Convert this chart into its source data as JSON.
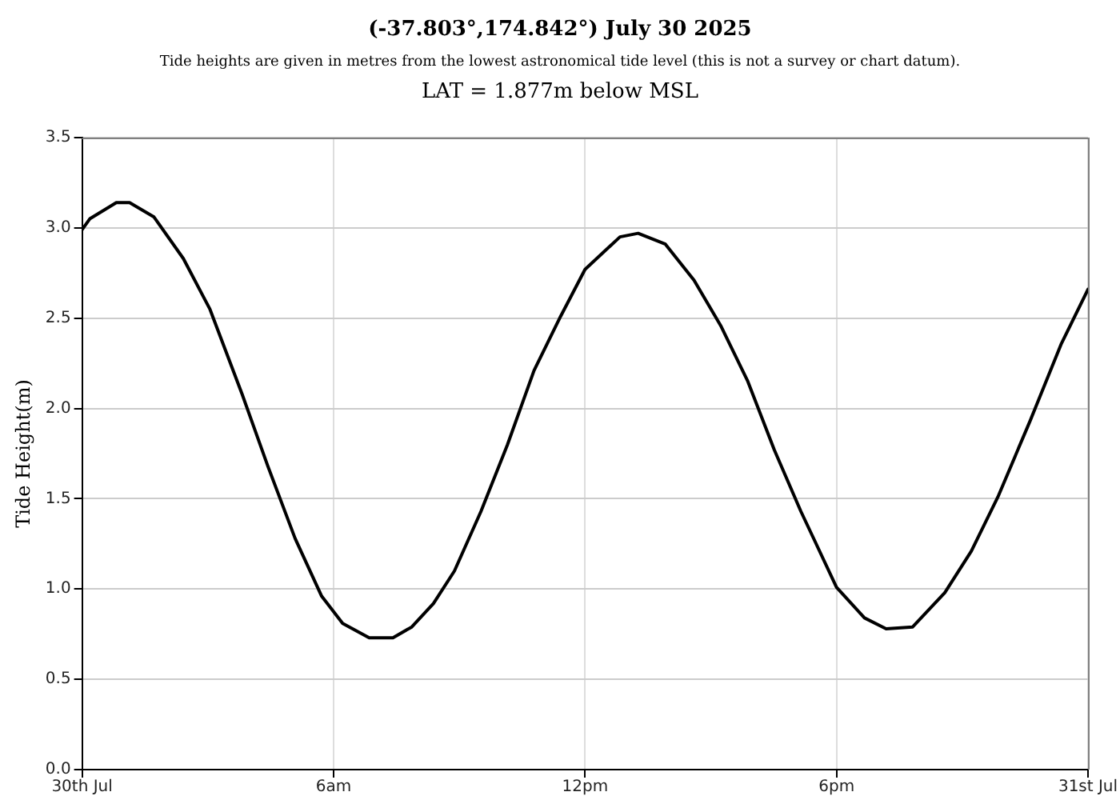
{
  "chart_data": {
    "type": "line",
    "title": "(-37.803°,174.842°) July 30 2025",
    "subtitle": "Tide heights are given in metres from the lowest astronomical tide level (this is not a survey or chart datum).",
    "annotations": [
      "LAT = 1.877m below MSL"
    ],
    "ylabel": "Tide Height(m)",
    "x": [
      "2025-07-30T00:00",
      "2025-07-30T00:11",
      "2025-07-30T00:49",
      "2025-07-30T01:08",
      "2025-07-30T01:43",
      "2025-07-30T02:25",
      "2025-07-30T03:03",
      "2025-07-30T03:49",
      "2025-07-30T04:26",
      "2025-07-30T05:05",
      "2025-07-30T05:43",
      "2025-07-30T06:13",
      "2025-07-30T06:51",
      "2025-07-30T07:25",
      "2025-07-30T07:52",
      "2025-07-30T08:23",
      "2025-07-30T08:53",
      "2025-07-30T09:31",
      "2025-07-30T10:09",
      "2025-07-30T10:47",
      "2025-07-30T11:25",
      "2025-07-30T12:00",
      "2025-07-30T12:50",
      "2025-07-30T13:16",
      "2025-07-30T13:55",
      "2025-07-30T14:36",
      "2025-07-30T15:14",
      "2025-07-30T15:53",
      "2025-07-30T16:31",
      "2025-07-30T17:09",
      "2025-07-30T18:00",
      "2025-07-30T18:40",
      "2025-07-30T19:11",
      "2025-07-30T19:49",
      "2025-07-30T20:35",
      "2025-07-30T21:13",
      "2025-07-30T21:51",
      "2025-07-30T22:37",
      "2025-07-30T23:22",
      "2025-07-31T00:00"
    ],
    "series": [
      {
        "color": "#000000",
        "values": [
          2.99,
          3.05,
          3.14,
          3.14,
          3.06,
          2.83,
          2.55,
          2.08,
          1.68,
          1.28,
          0.96,
          0.81,
          0.73,
          0.73,
          0.79,
          0.92,
          1.1,
          1.43,
          1.8,
          2.21,
          2.51,
          2.77,
          2.95,
          2.97,
          2.91,
          2.71,
          2.46,
          2.15,
          1.77,
          1.43,
          1.01,
          0.84,
          0.78,
          0.79,
          0.98,
          1.21,
          1.51,
          1.93,
          2.36,
          2.66
        ]
      }
    ],
    "xlim": [
      "2025-07-30T00:00",
      "2025-07-31T00:00"
    ],
    "xticks": [
      {
        "value": "2025-07-30T00:00",
        "label": "30th Jul"
      },
      {
        "value": "2025-07-30T06:00",
        "label": "6am"
      },
      {
        "value": "2025-07-30T12:00",
        "label": "12pm"
      },
      {
        "value": "2025-07-30T18:00",
        "label": "6pm"
      },
      {
        "value": "2025-07-31T00:00",
        "label": "31st Jul"
      }
    ],
    "ylim": [
      0,
      3.5
    ],
    "yticks": [
      {
        "value": 0,
        "label": "0.0"
      },
      {
        "value": 0.5,
        "label": "0.5"
      },
      {
        "value": 1,
        "label": "1.0"
      },
      {
        "value": 1.5,
        "label": "1.5"
      },
      {
        "value": 2,
        "label": "2.0"
      },
      {
        "value": 2.5,
        "label": "2.5"
      },
      {
        "value": 3,
        "label": "3.0"
      },
      {
        "value": 3.5,
        "label": "3.5"
      }
    ],
    "grid": true,
    "legend": false,
    "marker": "none",
    "line_style": "solid"
  }
}
